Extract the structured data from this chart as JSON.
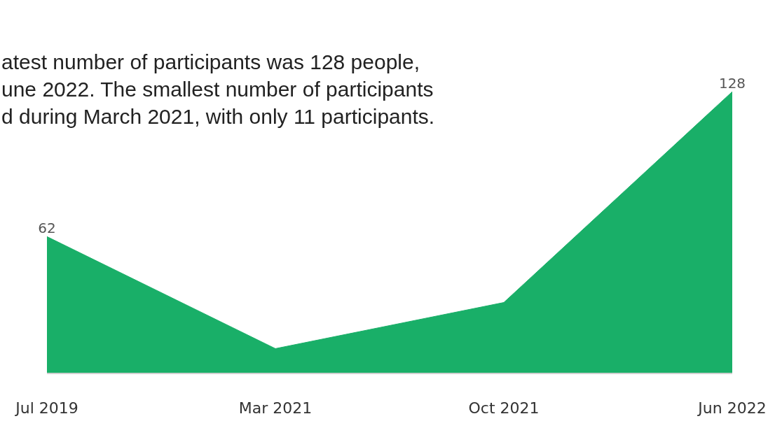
{
  "chart_data": {
    "type": "area",
    "categories": [
      "Jul 2019",
      "Mar 2021",
      "Oct 2021",
      "Jun 2022"
    ],
    "values": [
      62,
      11,
      32,
      128
    ],
    "color": "#19af68",
    "value_labels": [
      "62",
      null,
      null,
      "128"
    ],
    "annotations": [
      "atest number of participants was 128 people,\nune 2022. The smallest number of participants\nd during March 2021, with only 11 participants."
    ],
    "grid": false,
    "legend": false,
    "tick_labels": "x"
  }
}
